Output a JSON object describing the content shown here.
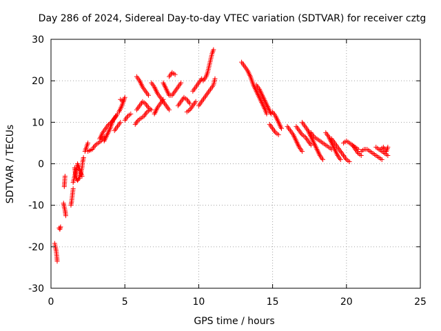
{
  "colors": {
    "series": "#ff0000",
    "grid": "#a0a0a0",
    "frame": "#000000",
    "text": "#000000"
  },
  "chart_data": {
    "type": "scatter",
    "title": "Day 286 of 2024, Sidereal Day-to-day VTEC variation (SDTVAR) for receiver cztg",
    "xlabel": "GPS time / hours",
    "ylabel": "SDTVAR / TECUs",
    "xlim": [
      0,
      25
    ],
    "ylim": [
      -30,
      30
    ],
    "xticks": [
      0,
      5,
      10,
      15,
      20,
      25
    ],
    "yticks": [
      -30,
      -20,
      -10,
      0,
      10,
      20,
      30
    ],
    "grid": true,
    "marker": "+",
    "series": [
      {
        "name": "SDTVAR",
        "segments": [
          [
            [
              0.25,
              -19.2
            ],
            [
              0.3,
              -20.0
            ],
            [
              0.35,
              -21.0
            ],
            [
              0.4,
              -22.5
            ],
            [
              0.42,
              -23.5
            ]
          ],
          [
            [
              0.55,
              -15.5
            ],
            [
              0.6,
              -15.8
            ],
            [
              0.65,
              -15.2
            ]
          ],
          [
            [
              0.85,
              -9.5
            ],
            [
              0.9,
              -10.5
            ],
            [
              0.95,
              -11.2
            ],
            [
              1.0,
              -12.5
            ]
          ],
          [
            [
              0.9,
              -5.5
            ],
            [
              0.92,
              -4.5
            ],
            [
              0.95,
              -3.0
            ]
          ],
          [
            [
              1.35,
              -10.0
            ],
            [
              1.4,
              -9.0
            ],
            [
              1.45,
              -7.5
            ],
            [
              1.5,
              -6.0
            ]
          ],
          [
            [
              1.5,
              -4.5
            ],
            [
              1.6,
              -3.0
            ],
            [
              1.7,
              -1.5
            ],
            [
              1.8,
              0.0
            ],
            [
              1.9,
              -1.0
            ],
            [
              2.0,
              -2.0
            ],
            [
              2.1,
              -3.0
            ]
          ],
          [
            [
              1.6,
              -1.0
            ],
            [
              1.7,
              -3.5
            ],
            [
              1.8,
              -4.0
            ],
            [
              1.9,
              -3.5
            ],
            [
              2.0,
              -2.5
            ],
            [
              2.1,
              -1.0
            ],
            [
              2.15,
              0.5
            ],
            [
              2.2,
              1.5
            ]
          ],
          [
            [
              2.3,
              3.0
            ],
            [
              2.4,
              4.0
            ],
            [
              2.5,
              5.0
            ]
          ],
          [
            [
              2.5,
              3.0
            ],
            [
              2.8,
              3.5
            ],
            [
              3.0,
              4.5
            ],
            [
              3.2,
              5.0
            ],
            [
              3.4,
              5.5
            ],
            [
              3.6,
              6.5
            ]
          ],
          [
            [
              3.3,
              6.0
            ],
            [
              3.5,
              7.5
            ],
            [
              3.7,
              8.5
            ],
            [
              3.9,
              9.5
            ],
            [
              4.1,
              10.0
            ],
            [
              4.3,
              11.0
            ],
            [
              4.5,
              12.0
            ]
          ],
          [
            [
              3.6,
              5.5
            ],
            [
              3.8,
              7.0
            ],
            [
              4.0,
              8.5
            ],
            [
              4.2,
              10.5
            ],
            [
              4.4,
              11.5
            ]
          ],
          [
            [
              4.3,
              8.0
            ],
            [
              4.5,
              9.0
            ],
            [
              4.7,
              10.0
            ]
          ],
          [
            [
              4.6,
              12.5
            ],
            [
              4.8,
              14.0
            ],
            [
              5.0,
              16.0
            ]
          ],
          [
            [
              4.7,
              15.5
            ],
            [
              4.9,
              15.0
            ]
          ],
          [
            [
              5.0,
              10.5
            ],
            [
              5.2,
              11.5
            ],
            [
              5.4,
              12.0
            ]
          ],
          [
            [
              5.7,
              9.5
            ],
            [
              5.9,
              10.5
            ],
            [
              6.1,
              11.0
            ],
            [
              6.3,
              11.5
            ],
            [
              6.5,
              12.5
            ],
            [
              6.7,
              13.0
            ]
          ],
          [
            [
              5.8,
              13.0
            ],
            [
              6.0,
              14.0
            ],
            [
              6.2,
              15.0
            ],
            [
              6.4,
              14.5
            ],
            [
              6.6,
              13.5
            ],
            [
              6.8,
              13.0
            ]
          ],
          [
            [
              5.8,
              21.0
            ],
            [
              6.0,
              20.0
            ],
            [
              6.2,
              18.5
            ],
            [
              6.4,
              17.5
            ],
            [
              6.6,
              16.5
            ]
          ],
          [
            [
              6.8,
              19.5
            ],
            [
              7.0,
              18.5
            ],
            [
              7.2,
              17.0
            ],
            [
              7.4,
              16.0
            ],
            [
              7.6,
              15.0
            ],
            [
              7.8,
              14.0
            ],
            [
              8.0,
              13.0
            ]
          ],
          [
            [
              7.0,
              12.0
            ],
            [
              7.2,
              13.5
            ],
            [
              7.4,
              14.5
            ],
            [
              7.6,
              15.5
            ]
          ],
          [
            [
              7.6,
              19.5
            ],
            [
              7.8,
              18.0
            ],
            [
              8.0,
              16.5
            ],
            [
              8.2,
              16.5
            ],
            [
              8.4,
              17.5
            ],
            [
              8.6,
              18.5
            ],
            [
              8.8,
              19.5
            ]
          ],
          [
            [
              8.0,
              21.0
            ],
            [
              8.2,
              22.0
            ],
            [
              8.4,
              21.5
            ]
          ],
          [
            [
              8.6,
              14.0
            ],
            [
              8.8,
              15.0
            ],
            [
              9.0,
              16.0
            ],
            [
              9.2,
              15.5
            ],
            [
              9.4,
              14.5
            ]
          ],
          [
            [
              9.2,
              12.5
            ],
            [
              9.4,
              13.0
            ],
            [
              9.6,
              14.0
            ],
            [
              9.8,
              15.0
            ]
          ],
          [
            [
              9.6,
              17.5
            ],
            [
              9.8,
              18.5
            ],
            [
              10.0,
              19.5
            ],
            [
              10.2,
              20.5
            ]
          ],
          [
            [
              10.0,
              14.0
            ],
            [
              10.2,
              15.0
            ],
            [
              10.4,
              16.0
            ],
            [
              10.6,
              17.0
            ],
            [
              10.8,
              18.0
            ],
            [
              11.0,
              19.0
            ],
            [
              11.1,
              20.5
            ]
          ],
          [
            [
              10.3,
              20.0
            ],
            [
              10.5,
              21.0
            ],
            [
              10.6,
              22.0
            ],
            [
              10.7,
              23.5
            ],
            [
              10.8,
              25.0
            ],
            [
              10.9,
              26.5
            ],
            [
              11.0,
              27.5
            ]
          ],
          [
            [
              12.9,
              24.5
            ],
            [
              13.1,
              23.5
            ],
            [
              13.3,
              22.5
            ],
            [
              13.5,
              21.0
            ],
            [
              13.7,
              19.0
            ],
            [
              13.9,
              17.5
            ],
            [
              14.1,
              16.0
            ],
            [
              14.3,
              14.5
            ],
            [
              14.5,
              13.0
            ],
            [
              14.6,
              12.0
            ]
          ],
          [
            [
              13.9,
              19.0
            ],
            [
              14.1,
              18.0
            ],
            [
              14.3,
              16.5
            ],
            [
              14.5,
              15.0
            ],
            [
              14.7,
              13.5
            ],
            [
              14.9,
              12.0
            ]
          ],
          [
            [
              15.0,
              12.5
            ],
            [
              15.2,
              11.5
            ],
            [
              15.4,
              10.0
            ],
            [
              15.6,
              8.5
            ]
          ],
          [
            [
              14.8,
              9.5
            ],
            [
              15.0,
              8.5
            ],
            [
              15.2,
              7.5
            ],
            [
              15.4,
              7.0
            ]
          ],
          [
            [
              16.0,
              9.0
            ],
            [
              16.2,
              8.0
            ],
            [
              16.4,
              7.0
            ],
            [
              16.6,
              5.5
            ],
            [
              16.8,
              4.0
            ],
            [
              17.0,
              3.0
            ]
          ],
          [
            [
              16.6,
              9.0
            ],
            [
              16.8,
              8.0
            ],
            [
              17.0,
              7.0
            ],
            [
              17.2,
              6.5
            ],
            [
              17.4,
              5.5
            ],
            [
              17.6,
              4.5
            ]
          ],
          [
            [
              17.0,
              10.0
            ],
            [
              17.2,
              9.0
            ],
            [
              17.4,
              8.0
            ],
            [
              17.6,
              6.5
            ],
            [
              17.8,
              5.0
            ],
            [
              18.0,
              3.5
            ],
            [
              18.2,
              2.0
            ],
            [
              18.4,
              1.0
            ]
          ],
          [
            [
              17.6,
              7.5
            ],
            [
              17.8,
              6.5
            ],
            [
              18.0,
              6.0
            ],
            [
              18.2,
              5.5
            ],
            [
              18.4,
              5.0
            ],
            [
              18.6,
              4.5
            ],
            [
              18.8,
              4.0
            ],
            [
              19.0,
              3.5
            ]
          ],
          [
            [
              18.6,
              7.5
            ],
            [
              18.8,
              6.5
            ],
            [
              19.0,
              5.0
            ],
            [
              19.2,
              3.5
            ],
            [
              19.4,
              2.0
            ],
            [
              19.6,
              1.0
            ]
          ],
          [
            [
              19.0,
              6.0
            ],
            [
              19.2,
              5.0
            ],
            [
              19.4,
              4.0
            ],
            [
              19.6,
              3.0
            ],
            [
              19.8,
              2.0
            ],
            [
              20.0,
              1.0
            ],
            [
              20.2,
              0.5
            ]
          ],
          [
            [
              19.8,
              5.0
            ],
            [
              20.0,
              5.5
            ],
            [
              20.2,
              5.0
            ],
            [
              20.4,
              4.5
            ],
            [
              20.6,
              4.0
            ],
            [
              20.8,
              3.5
            ]
          ],
          [
            [
              20.4,
              4.5
            ],
            [
              20.6,
              3.5
            ],
            [
              20.8,
              2.5
            ],
            [
              21.0,
              2.0
            ]
          ],
          [
            [
              21.0,
              3.0
            ],
            [
              21.2,
              3.5
            ],
            [
              21.4,
              3.5
            ],
            [
              21.6,
              3.0
            ],
            [
              21.8,
              2.5
            ],
            [
              22.0,
              2.0
            ],
            [
              22.2,
              1.5
            ],
            [
              22.4,
              1.0
            ]
          ],
          [
            [
              22.0,
              4.0
            ],
            [
              22.2,
              3.5
            ],
            [
              22.4,
              3.0
            ],
            [
              22.6,
              2.5
            ],
            [
              22.8,
              2.0
            ]
          ],
          [
            [
              22.3,
              3.5
            ],
            [
              22.5,
              4.0
            ],
            [
              22.7,
              3.0
            ],
            [
              22.8,
              4.0
            ]
          ]
        ]
      }
    ]
  }
}
